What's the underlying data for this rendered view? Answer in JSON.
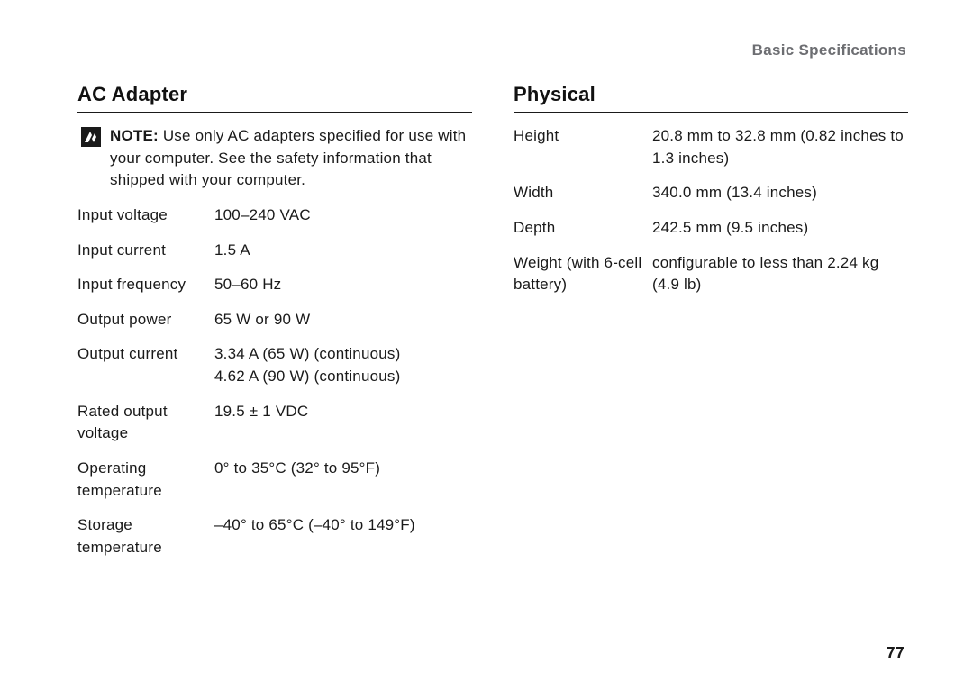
{
  "breadcrumb": "Basic Specifications",
  "pageNumber": "77",
  "left": {
    "title": "AC Adapter",
    "noteLabel": "NOTE:",
    "noteBody": " Use only AC adapters specified for use with your computer. See the safety information that shipped with your computer.",
    "rows": [
      {
        "label": "Input voltage",
        "lines": [
          "100–240 VAC"
        ]
      },
      {
        "label": "Input current",
        "lines": [
          "1.5 A"
        ]
      },
      {
        "label": "Input frequency",
        "lines": [
          "50–60 Hz"
        ]
      },
      {
        "label": "Output power",
        "lines": [
          "65 W or 90 W"
        ]
      },
      {
        "label": "Output current",
        "lines": [
          "3.34 A (65 W) (continuous)",
          "4.62 A (90 W) (continuous)"
        ]
      },
      {
        "label": "Rated output voltage",
        "lines": [
          "19.5 ± 1 VDC"
        ]
      },
      {
        "label": "Operating temperature",
        "lines": [
          "0° to 35°C (32° to 95°F)"
        ]
      },
      {
        "label": "Storage temperature",
        "lines": [
          "–40° to 65°C (–40° to 149°F)"
        ]
      }
    ]
  },
  "right": {
    "title": "Physical",
    "rows": [
      {
        "label": "Height",
        "lines": [
          "20.8 mm to 32.8 mm (0.82 inches to 1.3 inches)"
        ]
      },
      {
        "label": "Width",
        "lines": [
          "340.0 mm (13.4 inches)"
        ]
      },
      {
        "label": "Depth",
        "lines": [
          "242.5 mm (9.5 inches)"
        ]
      },
      {
        "label": "Weight (with 6-cell battery)",
        "lines": [
          "configurable to less than 2.24 kg (4.9 lb)"
        ]
      }
    ]
  },
  "style": {
    "textColor": "#1a1a1a",
    "breadcrumbColor": "#6d6e72",
    "ruleColor": "#1a1a1a",
    "background": "#ffffff",
    "bodyFontSize": 17,
    "titleFontSize": 22,
    "labelColWidth": 144
  }
}
